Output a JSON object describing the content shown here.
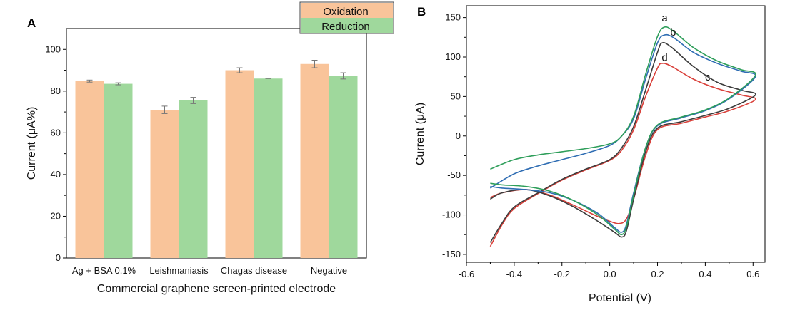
{
  "chart_data": [
    {
      "panel_label": "A",
      "type": "bar",
      "xlabel": "Commercial graphene screen-printed electrode",
      "ylabel": "Current (μA%)",
      "categories": [
        "Ag + BSA 0.1%",
        "Leishmaniasis",
        "Chagas disease",
        "Negative"
      ],
      "ylim": [
        0,
        110
      ],
      "yticks": [
        "0",
        "20",
        "40",
        "60",
        "80",
        "100"
      ],
      "legend": "top-right",
      "series": [
        {
          "name": "Oxidation",
          "color": "#f9c49a",
          "values": [
            84.8,
            71.0,
            90.0,
            93.0
          ],
          "errors": [
            0.5,
            1.8,
            1.2,
            1.8
          ]
        },
        {
          "name": "Reduction",
          "color": "#9fd89c",
          "values": [
            83.5,
            75.5,
            86.0,
            87.3
          ],
          "errors": [
            0.5,
            1.5,
            0.0,
            1.5
          ]
        }
      ]
    },
    {
      "panel_label": "B",
      "type": "line",
      "xlabel": "Potential (V)",
      "ylabel": "Current (μA)",
      "xlim": [
        -0.6,
        0.65
      ],
      "ylim": [
        -160,
        165
      ],
      "xticks": [
        "-0.6",
        "-0.4",
        "-0.2",
        "0.0",
        "0.2",
        "0.4",
        "0.6"
      ],
      "yticks": [
        "-150",
        "-100",
        "-50",
        "0",
        "50",
        "100",
        "150"
      ],
      "series": [
        {
          "name": "a",
          "color": "#2e9e5a",
          "forward": [
            [
              -0.5,
              -42
            ],
            [
              -0.4,
              -30
            ],
            [
              -0.3,
              -24
            ],
            [
              -0.2,
              -20
            ],
            [
              -0.1,
              -16
            ],
            [
              0.0,
              -10
            ],
            [
              0.05,
              0
            ],
            [
              0.1,
              25
            ],
            [
              0.15,
              78
            ],
            [
              0.2,
              126
            ],
            [
              0.23,
              138
            ],
            [
              0.27,
              132
            ],
            [
              0.35,
              112
            ],
            [
              0.45,
              95
            ],
            [
              0.55,
              84
            ],
            [
              0.61,
              77
            ]
          ],
          "reverse": [
            [
              0.61,
              73
            ],
            [
              0.5,
              48
            ],
            [
              0.4,
              33
            ],
            [
              0.3,
              24
            ],
            [
              0.2,
              14
            ],
            [
              0.15,
              -15
            ],
            [
              0.1,
              -75
            ],
            [
              0.07,
              -115
            ],
            [
              0.05,
              -125
            ],
            [
              0.02,
              -118
            ],
            [
              -0.05,
              -100
            ],
            [
              -0.15,
              -82
            ],
            [
              -0.25,
              -70
            ],
            [
              -0.35,
              -64
            ],
            [
              -0.45,
              -62
            ],
            [
              -0.5,
              -60
            ]
          ]
        },
        {
          "name": "b",
          "color": "#2f6db3",
          "forward": [
            [
              -0.5,
              -66
            ],
            [
              -0.4,
              -48
            ],
            [
              -0.3,
              -38
            ],
            [
              -0.2,
              -30
            ],
            [
              -0.1,
              -22
            ],
            [
              0.0,
              -12
            ],
            [
              0.05,
              0
            ],
            [
              0.1,
              22
            ],
            [
              0.15,
              72
            ],
            [
              0.2,
              118
            ],
            [
              0.23,
              128
            ],
            [
              0.27,
              124
            ],
            [
              0.35,
              106
            ],
            [
              0.45,
              92
            ],
            [
              0.55,
              82
            ],
            [
              0.61,
              75
            ]
          ],
          "reverse": [
            [
              0.61,
              72
            ],
            [
              0.5,
              47
            ],
            [
              0.4,
              32
            ],
            [
              0.3,
              23
            ],
            [
              0.2,
              13
            ],
            [
              0.15,
              -15
            ],
            [
              0.1,
              -72
            ],
            [
              0.07,
              -112
            ],
            [
              0.05,
              -122
            ],
            [
              0.02,
              -116
            ],
            [
              -0.05,
              -98
            ],
            [
              -0.15,
              -82
            ],
            [
              -0.25,
              -72
            ],
            [
              -0.35,
              -68
            ],
            [
              -0.45,
              -66
            ],
            [
              -0.5,
              -64
            ]
          ]
        },
        {
          "name": "c",
          "color": "#3c3c3c",
          "forward": [
            [
              -0.5,
              -135
            ],
            [
              -0.45,
              -110
            ],
            [
              -0.4,
              -90
            ],
            [
              -0.3,
              -72
            ],
            [
              -0.2,
              -55
            ],
            [
              -0.1,
              -42
            ],
            [
              0.0,
              -30
            ],
            [
              0.05,
              -15
            ],
            [
              0.1,
              12
            ],
            [
              0.15,
              58
            ],
            [
              0.2,
              106
            ],
            [
              0.22,
              118
            ],
            [
              0.26,
              112
            ],
            [
              0.35,
              88
            ],
            [
              0.45,
              68
            ],
            [
              0.55,
              58
            ],
            [
              0.61,
              52
            ]
          ],
          "reverse": [
            [
              0.61,
              50
            ],
            [
              0.5,
              35
            ],
            [
              0.4,
              26
            ],
            [
              0.3,
              18
            ],
            [
              0.2,
              10
            ],
            [
              0.15,
              -20
            ],
            [
              0.1,
              -80
            ],
            [
              0.07,
              -120
            ],
            [
              0.05,
              -128
            ],
            [
              0.02,
              -122
            ],
            [
              -0.05,
              -108
            ],
            [
              -0.15,
              -90
            ],
            [
              -0.25,
              -76
            ],
            [
              -0.35,
              -68
            ],
            [
              -0.45,
              -72
            ],
            [
              -0.5,
              -80
            ]
          ]
        },
        {
          "name": "d",
          "color": "#d9403a",
          "forward": [
            [
              -0.5,
              -140
            ],
            [
              -0.45,
              -112
            ],
            [
              -0.4,
              -92
            ],
            [
              -0.3,
              -73
            ],
            [
              -0.2,
              -56
            ],
            [
              -0.1,
              -43
            ],
            [
              0.0,
              -31
            ],
            [
              0.05,
              -18
            ],
            [
              0.1,
              8
            ],
            [
              0.15,
              50
            ],
            [
              0.2,
              86
            ],
            [
              0.22,
              92
            ],
            [
              0.26,
              88
            ],
            [
              0.35,
              72
            ],
            [
              0.45,
              60
            ],
            [
              0.55,
              52
            ],
            [
              0.61,
              46
            ]
          ],
          "reverse": [
            [
              0.61,
              44
            ],
            [
              0.5,
              32
            ],
            [
              0.4,
              24
            ],
            [
              0.3,
              16
            ],
            [
              0.2,
              8
            ],
            [
              0.15,
              -25
            ],
            [
              0.1,
              -80
            ],
            [
              0.07,
              -105
            ],
            [
              0.04,
              -111
            ],
            [
              0.0,
              -108
            ],
            [
              -0.05,
              -102
            ],
            [
              -0.15,
              -88
            ],
            [
              -0.25,
              -75
            ],
            [
              -0.35,
              -68
            ],
            [
              -0.45,
              -72
            ],
            [
              -0.5,
              -78
            ]
          ]
        }
      ]
    }
  ]
}
